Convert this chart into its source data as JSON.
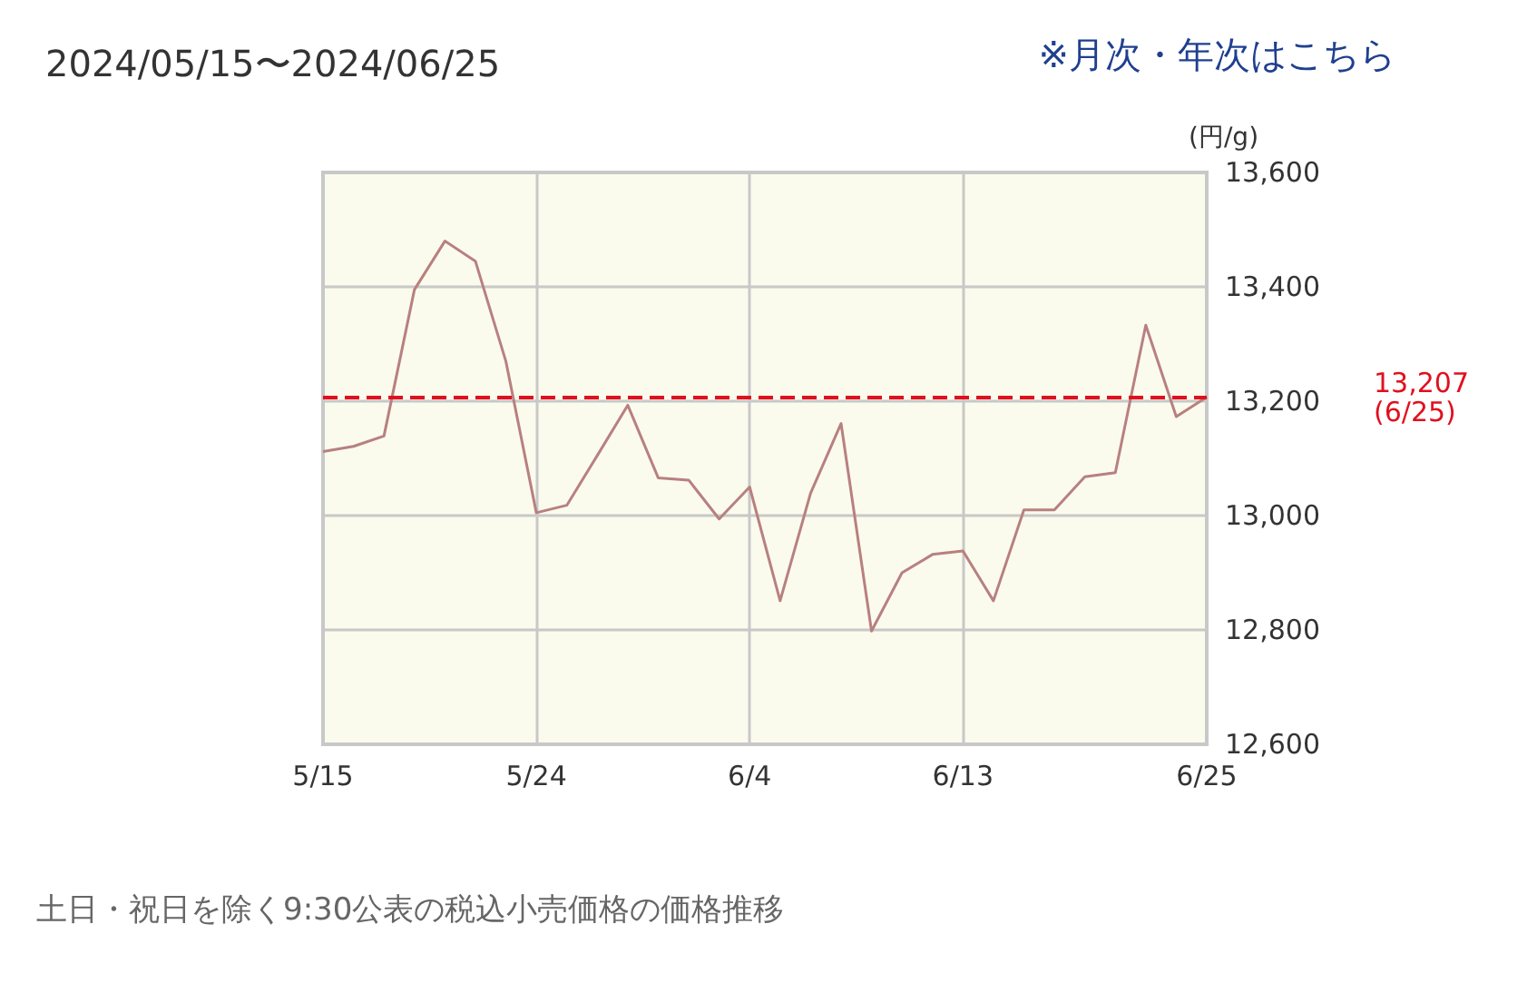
{
  "chart_data": {
    "type": "line",
    "title": "2024/05/15〜2024/06/25",
    "ylabel": "(円/g)",
    "annotations": [
      "※月次・年次はこちら",
      "土日・祝日を除く9:30公表の税込小売価格の価格推移"
    ],
    "categories": [
      "5/15",
      null,
      null,
      null,
      null,
      null,
      null,
      "5/24",
      null,
      null,
      null,
      null,
      null,
      null,
      "6/4",
      null,
      null,
      null,
      null,
      null,
      null,
      "6/13",
      null,
      null,
      null,
      null,
      null,
      null,
      null,
      "6/25"
    ],
    "series": [
      {
        "color": "#b88080",
        "values": [
          13112,
          13121,
          13139,
          13395,
          13480,
          13445,
          13270,
          13005,
          13018,
          13105,
          13193,
          13066,
          13062,
          12994,
          13050,
          12851,
          13039,
          13161,
          12798,
          12900,
          12932,
          12938,
          12851,
          13010,
          13010,
          13068,
          13075,
          13333,
          13173,
          13207
        ]
      }
    ],
    "ylim": [
      12600,
      13600
    ],
    "yticks": [
      {
        "value": 12600,
        "label": "12,600"
      },
      {
        "value": 12800,
        "label": "12,800"
      },
      {
        "value": 13000,
        "label": "13,000"
      },
      {
        "value": 13200,
        "label": "13,200"
      },
      {
        "value": 13400,
        "label": "13,400"
      },
      {
        "value": 13600,
        "label": "13,600"
      }
    ],
    "ref_lines": [
      {
        "axis": "y",
        "value": 13207,
        "label": "13,207\n(6/25)",
        "color": "#e0101e",
        "line_style": "dashed"
      }
    ],
    "grid": true,
    "marker": "none",
    "line_style": "solid"
  }
}
